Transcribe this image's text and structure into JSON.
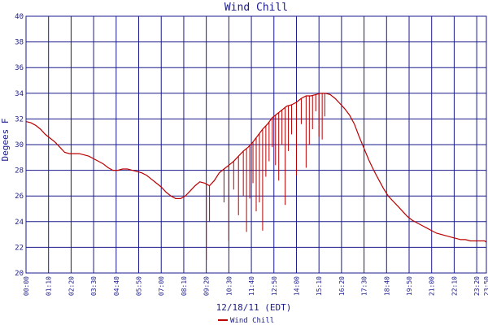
{
  "chart_data": {
    "type": "line",
    "title": "Wind Chill",
    "xlabel": "12/18/11 (EDT)",
    "ylabel": "Degees F",
    "ylim": [
      20,
      40
    ],
    "y_ticks": [
      20,
      22,
      24,
      26,
      28,
      30,
      32,
      34,
      36,
      38,
      40
    ],
    "x_ticks": [
      "00:00",
      "01:10",
      "02:20",
      "03:30",
      "04:40",
      "05:50",
      "07:00",
      "08:10",
      "09:20",
      "10:30",
      "11:40",
      "12:50",
      "14:00",
      "15:10",
      "16:20",
      "17:30",
      "18:40",
      "19:50",
      "21:00",
      "22:10",
      "23:20",
      "23:50"
    ],
    "xlim": [
      "00:00",
      "23:50"
    ],
    "grid": true,
    "legend_position": "bottom-center",
    "series": [
      {
        "name": "Wind Chill",
        "color": "#bb0000",
        "x": [
          "00:00",
          "00:15",
          "00:30",
          "00:45",
          "01:00",
          "01:15",
          "01:30",
          "01:45",
          "02:00",
          "02:15",
          "02:30",
          "02:45",
          "03:00",
          "03:15",
          "03:30",
          "03:45",
          "04:00",
          "04:15",
          "04:30",
          "04:45",
          "05:00",
          "05:15",
          "05:30",
          "05:45",
          "06:00",
          "06:15",
          "06:30",
          "06:45",
          "07:00",
          "07:15",
          "07:30",
          "07:45",
          "08:00",
          "08:15",
          "08:30",
          "08:45",
          "09:00",
          "09:15",
          "09:30",
          "09:45",
          "10:00",
          "10:15",
          "10:30",
          "10:45",
          "11:00",
          "11:15",
          "11:30",
          "11:45",
          "12:00",
          "12:15",
          "12:30",
          "12:45",
          "13:00",
          "13:15",
          "13:30",
          "13:45",
          "14:00",
          "14:15",
          "14:30",
          "14:45",
          "15:00",
          "15:15",
          "15:30",
          "15:45",
          "16:00",
          "16:15",
          "16:30",
          "16:45",
          "17:00",
          "17:15",
          "17:30",
          "17:45",
          "18:00",
          "18:15",
          "18:30",
          "18:45",
          "19:00",
          "19:15",
          "19:30",
          "19:45",
          "20:00",
          "20:15",
          "20:30",
          "20:45",
          "21:00",
          "21:15",
          "21:30",
          "21:45",
          "22:00",
          "22:15",
          "22:30",
          "22:45",
          "23:00",
          "23:15",
          "23:30",
          "23:45",
          "23:50"
        ],
        "values": [
          31.8,
          31.7,
          31.5,
          31.2,
          30.8,
          30.5,
          30.2,
          29.8,
          29.4,
          29.3,
          29.3,
          29.3,
          29.2,
          29.1,
          28.9,
          28.7,
          28.5,
          28.2,
          28.0,
          28.0,
          28.1,
          28.1,
          28.0,
          27.9,
          27.8,
          27.6,
          27.3,
          27.0,
          26.7,
          26.3,
          26.0,
          25.8,
          25.8,
          26.0,
          26.4,
          26.8,
          27.1,
          27.0,
          26.8,
          27.2,
          27.8,
          28.1,
          28.4,
          28.7,
          29.1,
          29.5,
          29.8,
          30.2,
          30.7,
          31.2,
          31.6,
          32.1,
          32.4,
          32.7,
          33.0,
          33.1,
          33.3,
          33.6,
          33.8,
          33.8,
          33.9,
          34.0,
          34.0,
          33.9,
          33.6,
          33.2,
          32.8,
          32.3,
          31.6,
          30.6,
          29.7,
          28.8,
          28.0,
          27.3,
          26.6,
          26.0,
          25.6,
          25.2,
          24.8,
          24.4,
          24.1,
          23.9,
          23.7,
          23.5,
          23.3,
          23.1,
          23.0,
          22.9,
          22.8,
          22.7,
          22.6,
          22.6,
          22.5,
          22.5,
          22.5,
          22.5,
          22.4
        ]
      }
    ],
    "dips": [
      {
        "x": "09:20",
        "value": 21.0
      },
      {
        "x": "09:30",
        "value": 24.0
      },
      {
        "x": "10:15",
        "value": 25.5
      },
      {
        "x": "10:30",
        "value": 22.5
      },
      {
        "x": "10:45",
        "value": 26.5
      },
      {
        "x": "11:00",
        "value": 24.5
      },
      {
        "x": "11:15",
        "value": 26.0
      },
      {
        "x": "11:25",
        "value": 23.2
      },
      {
        "x": "11:35",
        "value": 25.8
      },
      {
        "x": "11:45",
        "value": 27.0
      },
      {
        "x": "11:55",
        "value": 24.8
      },
      {
        "x": "12:05",
        "value": 25.5
      },
      {
        "x": "12:15",
        "value": 23.3
      },
      {
        "x": "12:25",
        "value": 27.5
      },
      {
        "x": "12:35",
        "value": 28.7
      },
      {
        "x": "12:45",
        "value": 29.8
      },
      {
        "x": "12:55",
        "value": 28.4
      },
      {
        "x": "13:05",
        "value": 27.2
      },
      {
        "x": "13:15",
        "value": 30.0
      },
      {
        "x": "13:25",
        "value": 25.3
      },
      {
        "x": "13:35",
        "value": 29.5
      },
      {
        "x": "13:45",
        "value": 30.8
      },
      {
        "x": "14:00",
        "value": 27.6
      },
      {
        "x": "14:15",
        "value": 31.6
      },
      {
        "x": "14:30",
        "value": 28.2
      },
      {
        "x": "14:40",
        "value": 30.0
      },
      {
        "x": "14:50",
        "value": 31.2
      },
      {
        "x": "15:00",
        "value": 32.6
      },
      {
        "x": "15:10",
        "value": 30.6
      },
      {
        "x": "15:20",
        "value": 30.4
      },
      {
        "x": "15:28",
        "value": 32.2
      }
    ]
  }
}
